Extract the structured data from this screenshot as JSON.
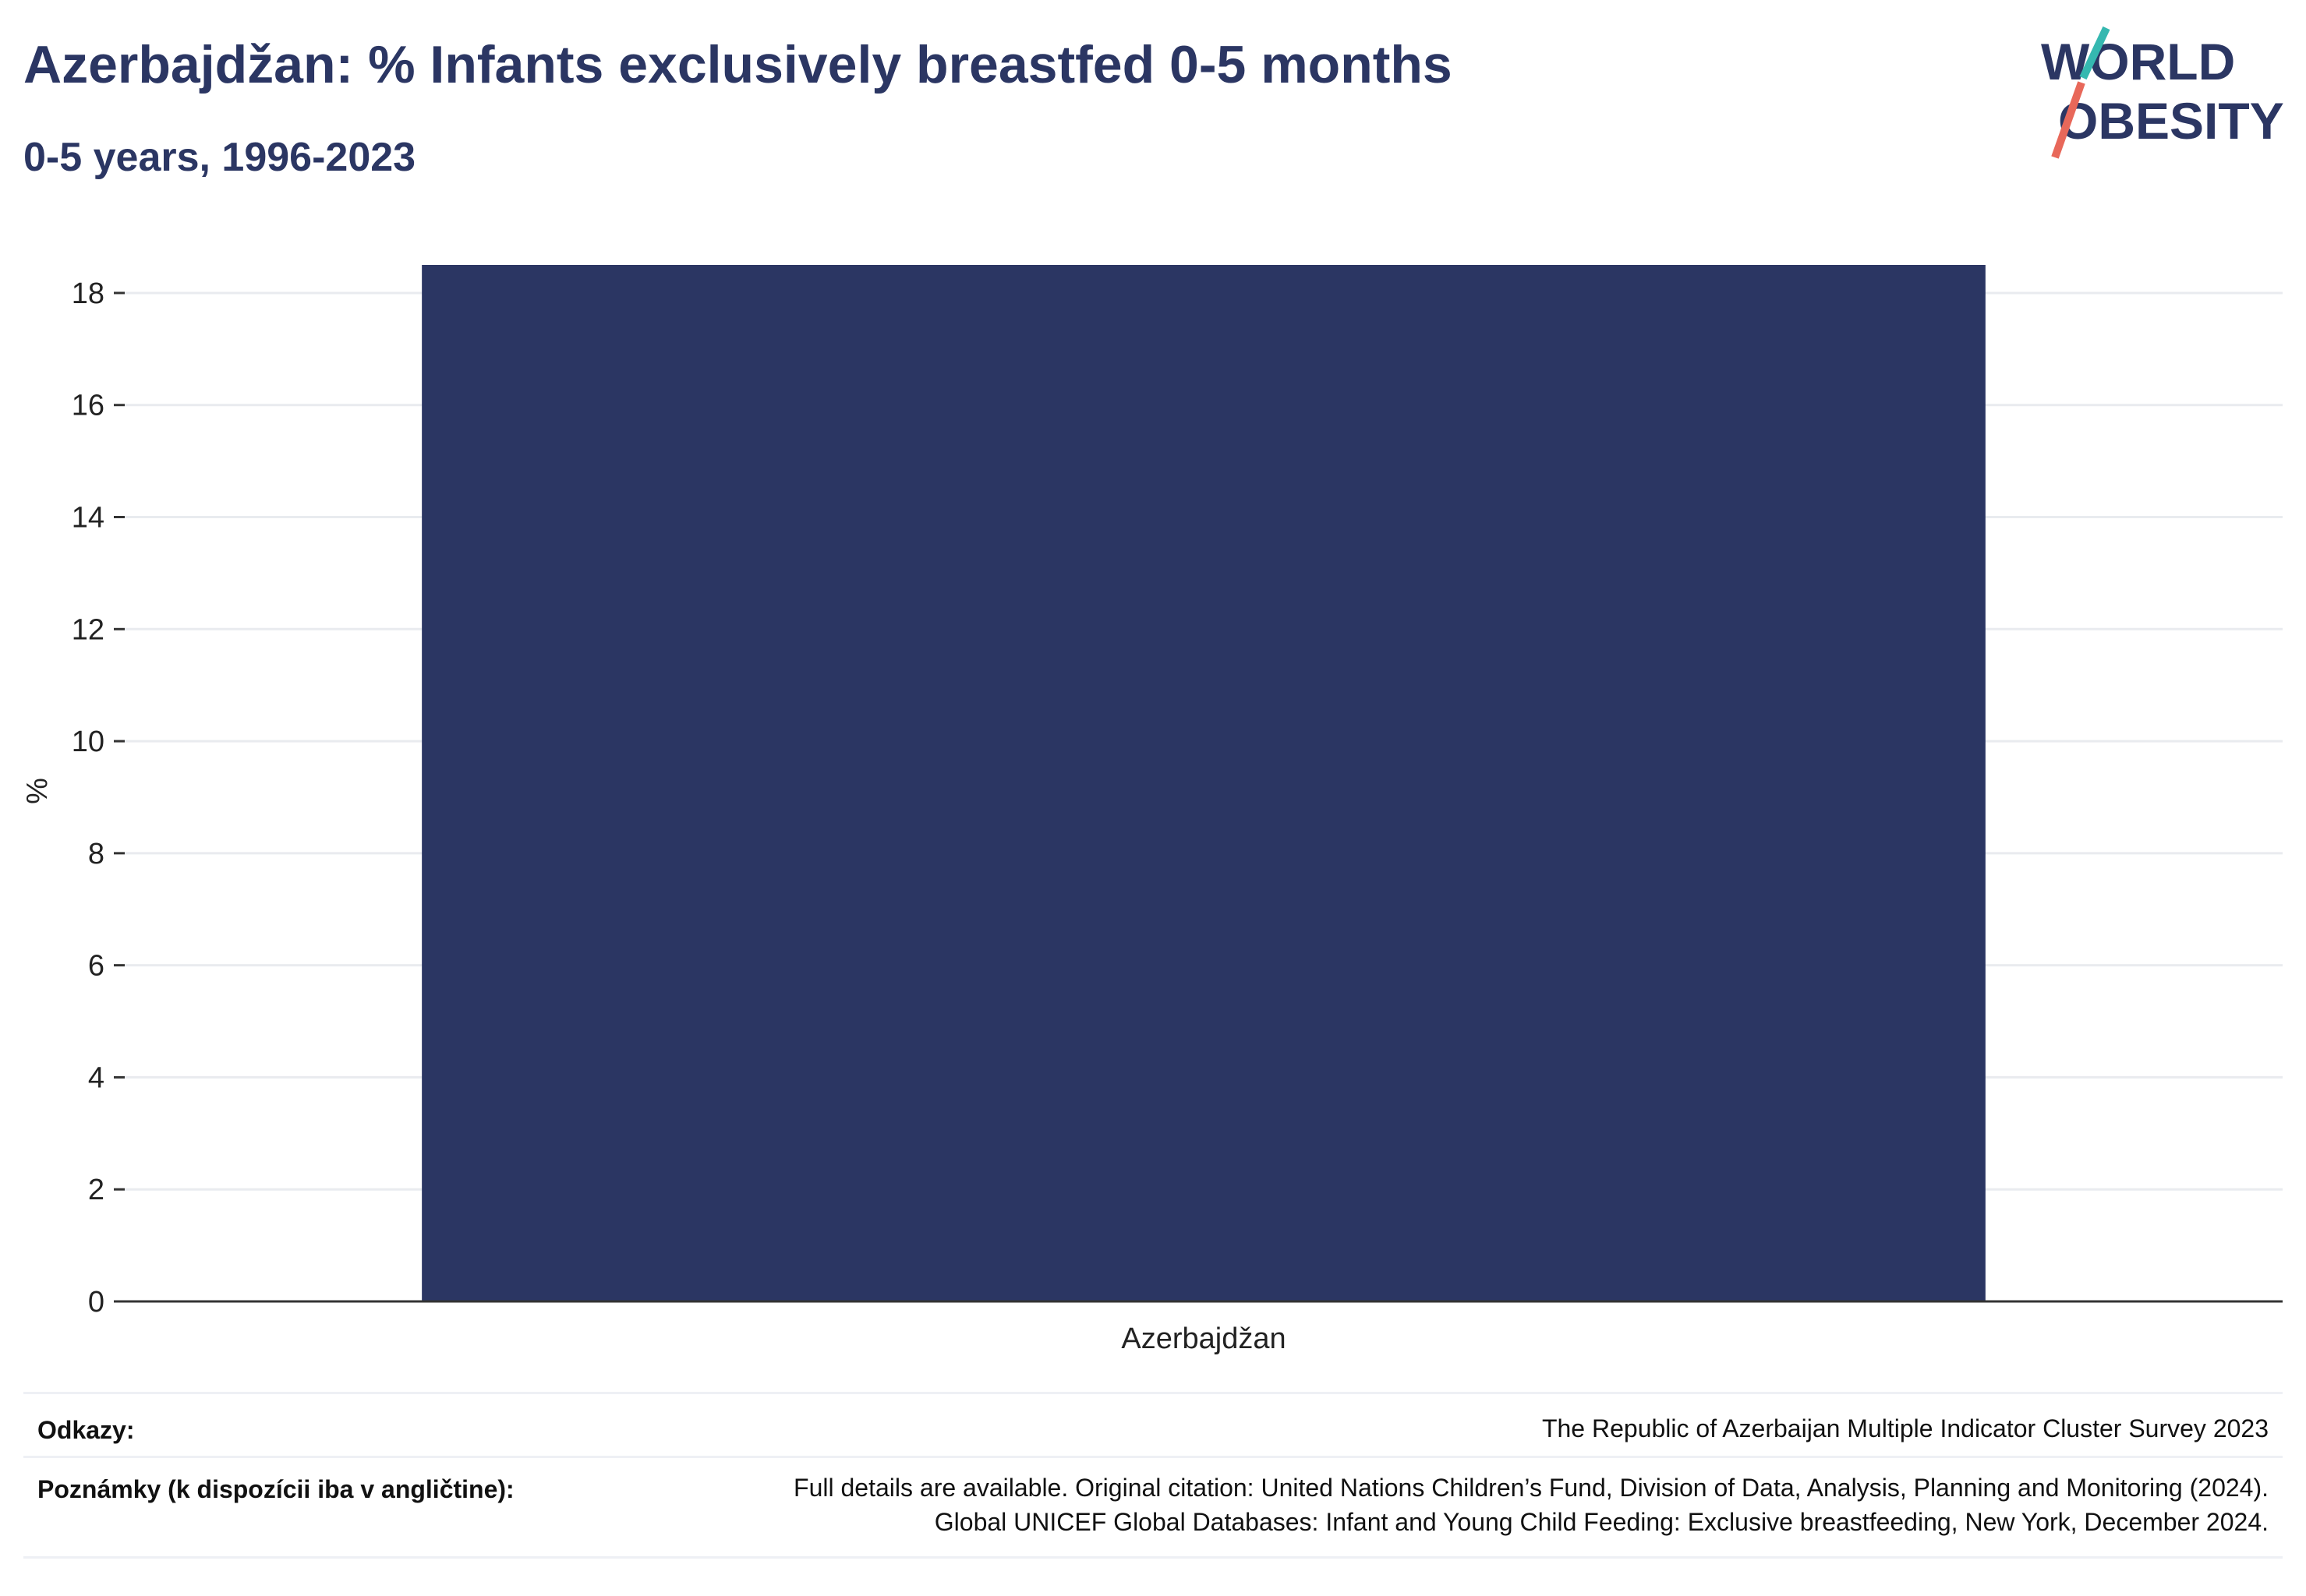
{
  "header": {
    "title": "Azerbajdžan: % Infants exclusively breastfed 0-5 months",
    "subtitle": "0-5 years, 1996-2023"
  },
  "logo": {
    "line1": "WORLD",
    "line2": "OBESITY",
    "colors": {
      "text": "#2b3663",
      "slash_top": "#35b8b0",
      "slash_bottom": "#e8685a"
    }
  },
  "chart_data": {
    "type": "bar",
    "categories": [
      "Azerbajdžan"
    ],
    "values": [
      18.5
    ],
    "ylabel": "%",
    "xlabel": "",
    "ylim": [
      0,
      18.5
    ],
    "yticks": [
      0,
      2,
      4,
      6,
      8,
      10,
      12,
      14,
      16,
      18
    ],
    "grid": true,
    "bar_color": "#2b3663"
  },
  "footer": {
    "sources_label": "Odkazy:",
    "sources_value": "The Republic of Azerbaijan Multiple Indicator Cluster Survey 2023",
    "notes_label": "Poznámky (k dispozícii iba v angličtine):",
    "notes_line1": "Full details are available. Original citation: United Nations Children’s Fund, Division of Data, Analysis, Planning and Monitoring (2024).",
    "notes_line2": "Global UNICEF Global Databases: Infant and Young Child Feeding: Exclusive breastfeeding, New York, December 2024."
  }
}
